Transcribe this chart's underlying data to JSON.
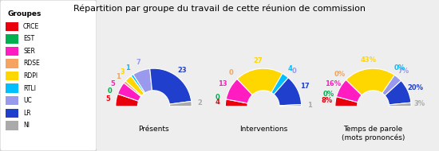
{
  "title": "Répartition par groupe du travail de cette réunion de commission",
  "groups": [
    "CRCE",
    "EST",
    "SER",
    "RDSE",
    "RDPI",
    "RTLI",
    "UC",
    "LR",
    "NI"
  ],
  "colors": [
    "#e8000d",
    "#00b050",
    "#ff1dc2",
    "#f4a460",
    "#ffd700",
    "#00bfff",
    "#9999ee",
    "#1f3fcc",
    "#aaaaaa"
  ],
  "presences": [
    5,
    0,
    5,
    1,
    3,
    1,
    7,
    23,
    2
  ],
  "interventions": [
    4,
    0,
    13,
    0,
    27,
    4,
    0,
    17,
    1
  ],
  "temps_parole_pct": [
    8,
    0,
    16,
    0,
    43,
    0,
    7,
    20,
    3
  ],
  "subtitle1": "Présents",
  "subtitle2": "Interventions",
  "subtitle3": "Temps de parole\n(mots prononcés)",
  "bg_color": "#eeeeee",
  "legend_title": "Groupes"
}
